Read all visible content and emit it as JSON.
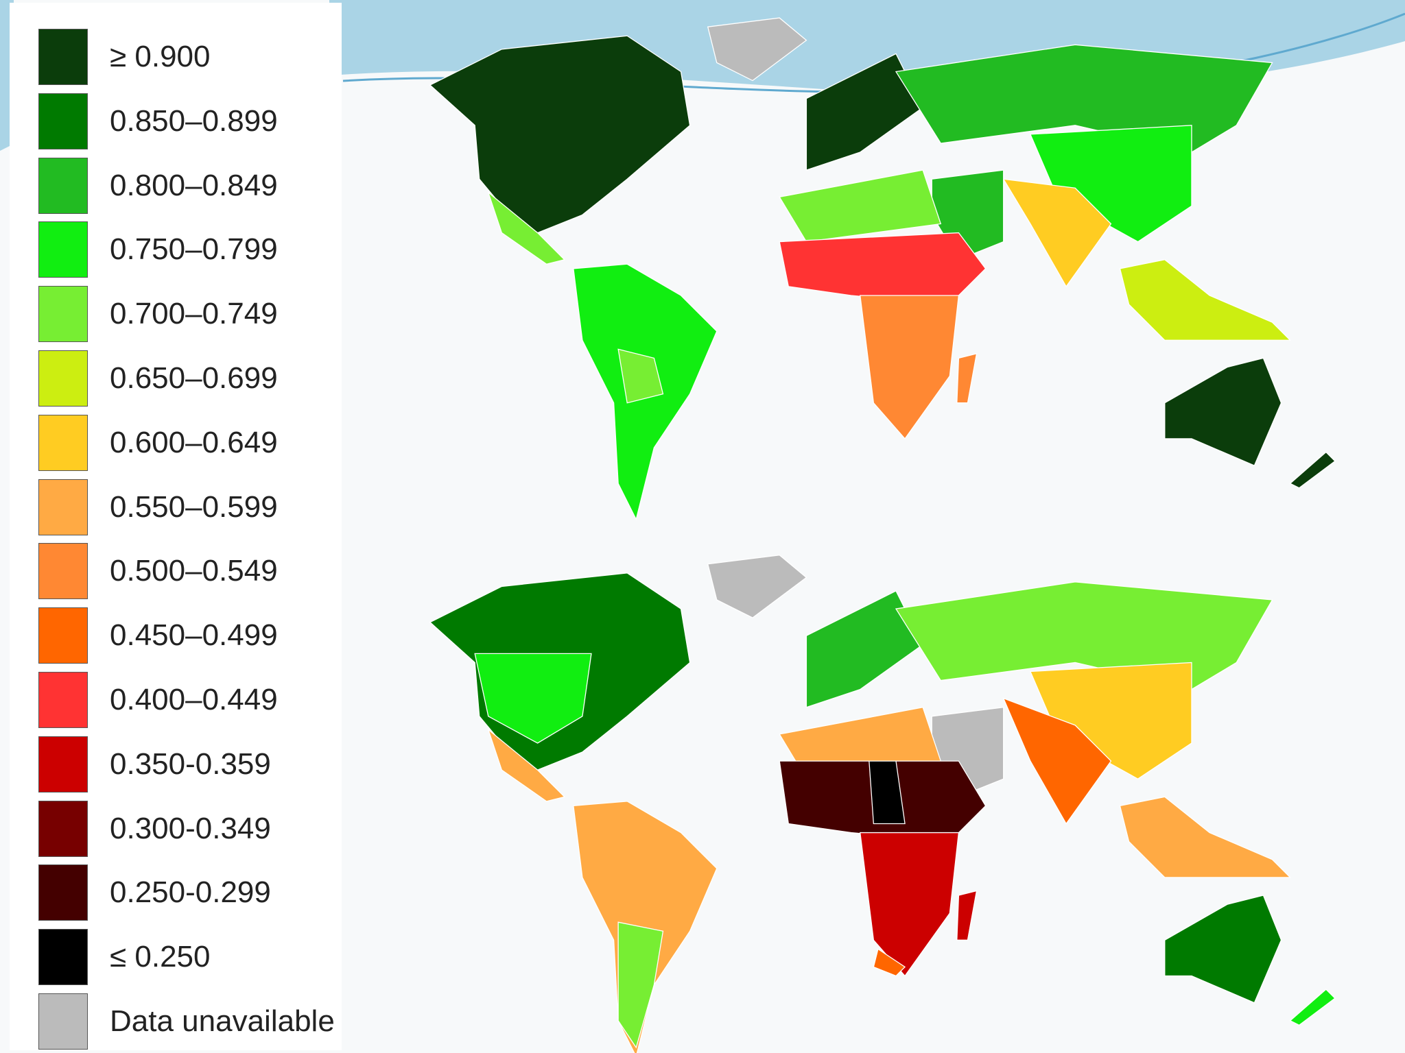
{
  "legend": {
    "items": [
      {
        "label": "≥ 0.900",
        "color": "#0b3d0b"
      },
      {
        "label": "0.850–0.899",
        "color": "#007a00"
      },
      {
        "label": "0.800–0.849",
        "color": "#22bb22"
      },
      {
        "label": "0.750–0.799",
        "color": "#11ee11"
      },
      {
        "label": "0.700–0.749",
        "color": "#77ee33"
      },
      {
        "label": "0.650–0.699",
        "color": "#ccee11"
      },
      {
        "label": "0.600–0.649",
        "color": "#ffcc22"
      },
      {
        "label": "0.550–0.599",
        "color": "#ffaa44"
      },
      {
        "label": "0.500–0.549",
        "color": "#ff8833"
      },
      {
        "label": "0.450–0.499",
        "color": "#ff6600"
      },
      {
        "label": "0.400–0.449",
        "color": "#ff3333"
      },
      {
        "label": "0.350-0.359",
        "color": "#cc0000"
      },
      {
        "label": "0.300-0.349",
        "color": "#770000"
      },
      {
        "label": "0.250-0.299",
        "color": "#440000"
      },
      {
        "label": "≤ 0.250",
        "color": "#000000"
      },
      {
        "label": "Data unavailable",
        "color": "#bbbbbb"
      }
    ]
  }
}
